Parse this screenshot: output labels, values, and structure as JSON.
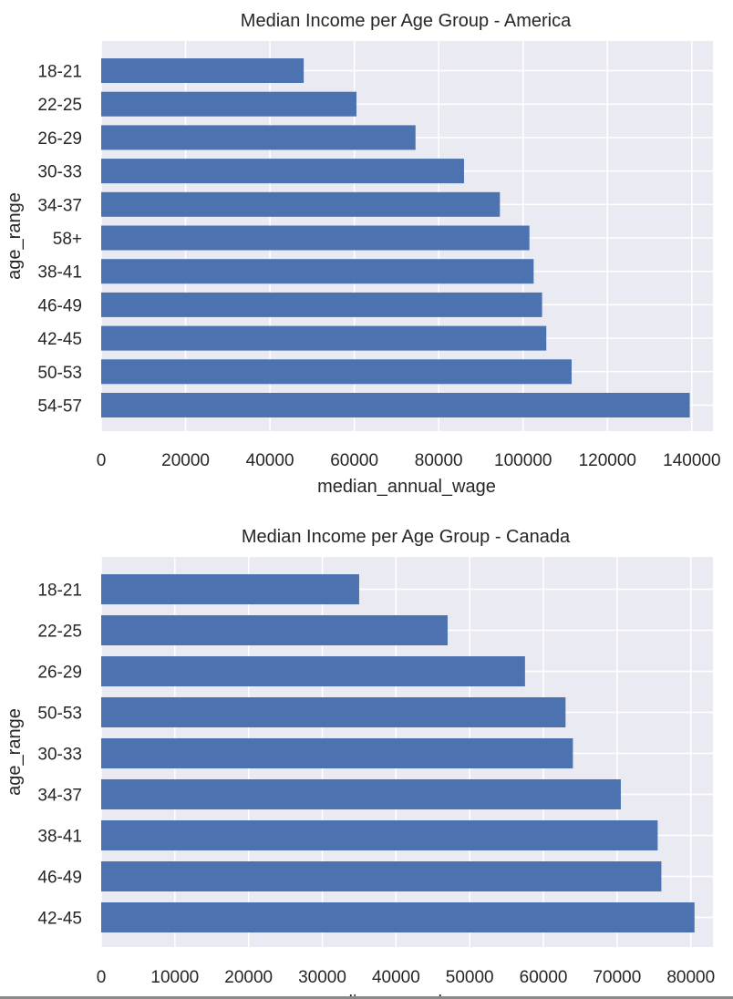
{
  "figure": {
    "colors": {
      "background": "#ffffff",
      "plot_background": "#eaeaf2",
      "grid": "#ffffff",
      "bar": "#4c72b0",
      "text": "#262626"
    }
  },
  "chart_data": [
    {
      "type": "bar",
      "orientation": "horizontal",
      "title": "Median Income per Age Group - America",
      "xlabel": "median_annual_wage",
      "ylabel": "age_range",
      "categories": [
        "18-21",
        "22-25",
        "26-29",
        "30-33",
        "34-37",
        "58+",
        "38-41",
        "46-49",
        "42-45",
        "50-53",
        "54-57"
      ],
      "values": [
        48000,
        60500,
        74500,
        86000,
        94500,
        101500,
        102500,
        104500,
        105500,
        111500,
        139500
      ],
      "xlim": [
        0,
        145000
      ],
      "xticks": [
        0,
        20000,
        40000,
        60000,
        80000,
        100000,
        120000,
        140000
      ],
      "xtick_labels": [
        "0",
        "20000",
        "40000",
        "60000",
        "80000",
        "100000",
        "120000",
        "140000"
      ],
      "grid": true
    },
    {
      "type": "bar",
      "orientation": "horizontal",
      "title": "Median Income per Age Group - Canada",
      "xlabel": "median_annual_wage",
      "ylabel": "age_range",
      "categories": [
        "18-21",
        "22-25",
        "26-29",
        "50-53",
        "30-33",
        "34-37",
        "38-41",
        "46-49",
        "42-45"
      ],
      "values": [
        35000,
        47000,
        57500,
        63000,
        64000,
        70500,
        75500,
        76000,
        80500
      ],
      "xlim": [
        0,
        83000
      ],
      "xticks": [
        0,
        10000,
        20000,
        30000,
        40000,
        50000,
        60000,
        70000,
        80000
      ],
      "xtick_labels": [
        "0",
        "10000",
        "20000",
        "30000",
        "40000",
        "50000",
        "60000",
        "70000",
        "80000"
      ],
      "grid": true
    }
  ]
}
